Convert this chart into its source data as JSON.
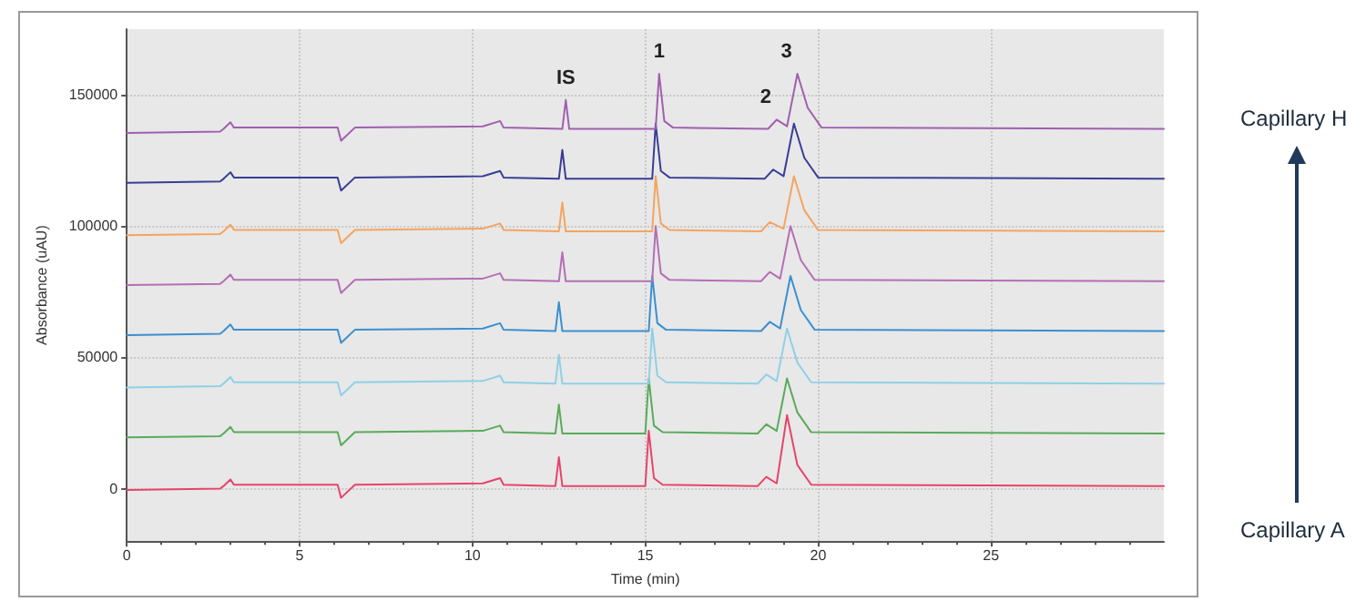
{
  "chart_data": {
    "type": "line",
    "xlabel": "Time (min)",
    "ylabel": "Absorbance (uAU)",
    "xlim": [
      0,
      30
    ],
    "xticks": [
      0,
      5,
      10,
      15,
      20,
      25
    ],
    "ylim": [
      -20000,
      175000
    ],
    "yticks": [
      0,
      50000,
      100000,
      150000
    ],
    "grid": true,
    "marker": "none",
    "line_style": "solid",
    "annotations": [
      {
        "text": "IS",
        "x": 12.7,
        "y": 148000
      },
      {
        "text": "1",
        "x": 15.4,
        "y": 158000
      },
      {
        "text": "2",
        "x": 18.8,
        "y": 140500
      },
      {
        "text": "3",
        "x": 19.4,
        "y": 158000
      },
      "Capillary H",
      "Capillary A"
    ],
    "series": [
      {
        "color": "#e8436a",
        "x": [
          0,
          2.7,
          2.8,
          3.0,
          3.1,
          6.1,
          6.2,
          6.6,
          10.3,
          10.8,
          10.9,
          12.4,
          12.5,
          12.6,
          15.0,
          15.1,
          15.25,
          15.5,
          18.25,
          18.5,
          18.8,
          19.1,
          19.4,
          19.8,
          30
        ],
        "values": [
          -500,
          0,
          1000,
          3500,
          1500,
          1500,
          -3500,
          1500,
          2000,
          4000,
          1500,
          1000,
          12000,
          1000,
          1000,
          22000,
          4000,
          1500,
          1000,
          4500,
          2000,
          28000,
          9000,
          1500,
          1000
        ]
      },
      {
        "color": "#5aaa5a",
        "x": [
          0,
          2.7,
          2.8,
          3.0,
          3.1,
          6.1,
          6.2,
          6.6,
          10.3,
          10.8,
          10.9,
          12.4,
          12.5,
          12.6,
          15.0,
          15.1,
          15.25,
          15.5,
          18.25,
          18.5,
          18.8,
          19.1,
          19.4,
          19.8,
          30
        ],
        "values": [
          19500,
          20000,
          21000,
          23500,
          21500,
          21500,
          16500,
          21500,
          22000,
          24000,
          21500,
          21000,
          32000,
          21000,
          21000,
          42000,
          24000,
          21500,
          21000,
          24500,
          22000,
          42000,
          29000,
          21500,
          21000
        ]
      },
      {
        "color": "#8fd0e6",
        "x": [
          0,
          2.7,
          2.8,
          3.0,
          3.1,
          6.1,
          6.2,
          6.6,
          10.3,
          10.8,
          10.9,
          12.4,
          12.5,
          12.6,
          15.1,
          15.2,
          15.35,
          15.6,
          18.25,
          18.5,
          18.8,
          19.1,
          19.4,
          19.8,
          30
        ],
        "values": [
          38500,
          39000,
          40000,
          42500,
          40500,
          40500,
          35500,
          40500,
          41000,
          43000,
          40500,
          40000,
          51000,
          40000,
          40000,
          61000,
          43000,
          40500,
          40000,
          43500,
          41000,
          61000,
          48000,
          40500,
          40000
        ]
      },
      {
        "color": "#3b8fd0",
        "x": [
          0,
          2.7,
          2.8,
          3.0,
          3.1,
          6.1,
          6.2,
          6.6,
          10.3,
          10.8,
          10.9,
          12.4,
          12.5,
          12.6,
          15.1,
          15.2,
          15.35,
          15.6,
          18.35,
          18.6,
          18.9,
          19.2,
          19.5,
          19.9,
          30
        ],
        "values": [
          58500,
          59000,
          60000,
          62500,
          60500,
          60500,
          55500,
          60500,
          61000,
          63000,
          60500,
          60000,
          71000,
          60000,
          60000,
          81000,
          63000,
          60500,
          60000,
          63500,
          61000,
          81000,
          68000,
          60500,
          60000
        ]
      },
      {
        "color": "#b46fb4",
        "x": [
          0,
          2.7,
          2.8,
          3.0,
          3.1,
          6.1,
          6.2,
          6.6,
          10.3,
          10.8,
          10.9,
          12.5,
          12.6,
          12.7,
          15.2,
          15.3,
          15.45,
          15.7,
          18.35,
          18.6,
          18.9,
          19.2,
          19.5,
          19.9,
          30
        ],
        "values": [
          77500,
          78000,
          79000,
          81500,
          79500,
          79500,
          74500,
          79500,
          80000,
          82000,
          79500,
          79000,
          90000,
          79000,
          79000,
          100000,
          82000,
          79500,
          79000,
          82500,
          80000,
          100000,
          87000,
          79500,
          79000
        ]
      },
      {
        "color": "#f4a460",
        "x": [
          0,
          2.7,
          2.8,
          3.0,
          3.1,
          6.1,
          6.2,
          6.6,
          10.3,
          10.8,
          10.9,
          12.5,
          12.6,
          12.7,
          15.2,
          15.3,
          15.45,
          15.7,
          18.35,
          18.6,
          19.0,
          19.3,
          19.6,
          20.0,
          30
        ],
        "values": [
          96500,
          97000,
          98000,
          100500,
          98500,
          98500,
          93500,
          98500,
          99000,
          101000,
          98500,
          98000,
          109000,
          98000,
          98000,
          119000,
          101000,
          98500,
          98000,
          101500,
          99000,
          119000,
          106000,
          98500,
          98000
        ]
      },
      {
        "color": "#3a3d96",
        "x": [
          0,
          2.7,
          2.8,
          3.0,
          3.1,
          6.1,
          6.2,
          6.6,
          10.3,
          10.8,
          10.9,
          12.5,
          12.6,
          12.7,
          15.2,
          15.3,
          15.45,
          15.7,
          18.45,
          18.7,
          19.0,
          19.3,
          19.6,
          20.0,
          30
        ],
        "values": [
          116500,
          117000,
          118000,
          120500,
          118500,
          118500,
          113500,
          118500,
          119000,
          121000,
          118500,
          118000,
          129000,
          118000,
          118000,
          139000,
          121000,
          118500,
          118000,
          121500,
          119000,
          139000,
          126000,
          118500,
          118000
        ]
      },
      {
        "color": "#a05fb0",
        "x": [
          0,
          2.7,
          2.8,
          3.0,
          3.1,
          6.1,
          6.2,
          6.6,
          10.3,
          10.8,
          10.9,
          12.6,
          12.7,
          12.8,
          15.3,
          15.4,
          15.55,
          15.8,
          18.55,
          18.8,
          19.1,
          19.4,
          19.7,
          20.1,
          30
        ],
        "values": [
          135500,
          136000,
          137000,
          139500,
          137500,
          137500,
          132500,
          137500,
          138000,
          140000,
          137500,
          137000,
          148000,
          137000,
          137000,
          158000,
          140000,
          137500,
          137000,
          140500,
          138000,
          158000,
          145000,
          137500,
          137000
        ]
      }
    ]
  }
}
